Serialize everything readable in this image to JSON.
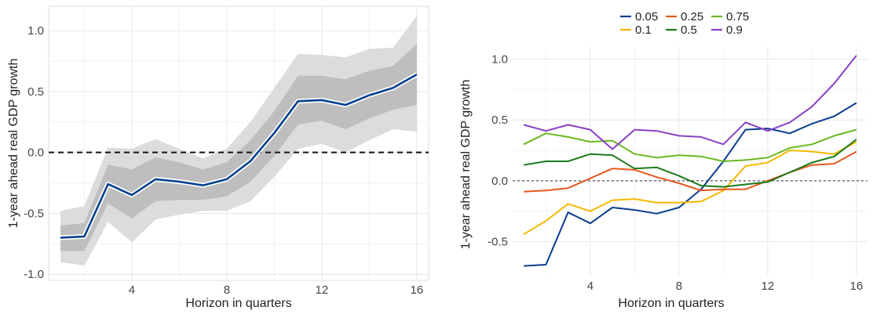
{
  "chart_data": [
    {
      "type": "area",
      "title": "",
      "xlabel": "Horizon in quarters",
      "ylabel": "1-year ahead real GDP growth",
      "xlim": [
        0.5,
        16.5
      ],
      "ylim": [
        -1.05,
        1.2
      ],
      "x_ticks": [
        4,
        8,
        12,
        16
      ],
      "y_ticks": [
        -1.0,
        -0.5,
        0.0,
        0.5,
        1.0
      ],
      "y_tick_labels": [
        "-1.0",
        "-0.5",
        "0.0",
        "0.5",
        "1.0"
      ],
      "grid": true,
      "reference_line": {
        "y": 0,
        "style": "dashed"
      },
      "x": [
        1,
        2,
        3,
        4,
        5,
        6,
        7,
        8,
        9,
        10,
        11,
        12,
        13,
        14,
        15,
        16
      ],
      "median": [
        -0.7,
        -0.69,
        -0.26,
        -0.35,
        -0.22,
        -0.24,
        -0.27,
        -0.22,
        -0.07,
        0.16,
        0.42,
        0.43,
        0.39,
        0.47,
        0.53,
        0.64
      ],
      "inner_band_upper": [
        -0.6,
        -0.58,
        -0.1,
        -0.14,
        -0.04,
        -0.08,
        -0.14,
        -0.08,
        0.1,
        0.34,
        0.63,
        0.63,
        0.6,
        0.67,
        0.71,
        0.89
      ],
      "inner_band_lower": [
        -0.81,
        -0.81,
        -0.42,
        -0.54,
        -0.4,
        -0.39,
        -0.39,
        -0.36,
        -0.24,
        -0.03,
        0.23,
        0.26,
        0.19,
        0.28,
        0.35,
        0.39
      ],
      "outer_band_upper": [
        -0.48,
        -0.44,
        0.04,
        0.03,
        0.11,
        0.03,
        -0.05,
        0.03,
        0.25,
        0.53,
        0.81,
        0.8,
        0.78,
        0.85,
        0.86,
        1.12
      ],
      "outer_band_lower": [
        -0.9,
        -0.93,
        -0.57,
        -0.74,
        -0.55,
        -0.51,
        -0.48,
        -0.48,
        -0.4,
        -0.2,
        0.03,
        0.07,
        0.0,
        0.1,
        0.19,
        0.17
      ],
      "colors": {
        "median": "#003f8f",
        "inner_band": "#bebebe",
        "outer_band": "#dcdcdc"
      }
    },
    {
      "type": "line",
      "title": "",
      "xlabel": "Horizon in quarters",
      "ylabel": "1-year ahead real GDP growth",
      "xlim": [
        0.5,
        16.5
      ],
      "ylim": [
        -0.78,
        1.1
      ],
      "x_ticks": [
        4,
        8,
        12,
        16
      ],
      "y_ticks": [
        -0.5,
        0.0,
        0.5,
        1.0
      ],
      "y_tick_labels": [
        "-0.5",
        "0.0",
        "0.5",
        "1.0"
      ],
      "grid": true,
      "reference_line": {
        "y": 0,
        "style": "dashed"
      },
      "legend_position": "top",
      "x": [
        1,
        2,
        3,
        4,
        5,
        6,
        7,
        8,
        9,
        10,
        11,
        12,
        13,
        14,
        15,
        16
      ],
      "series": [
        {
          "name": "0.05",
          "color": "#0b3d91",
          "values": [
            -0.7,
            -0.69,
            -0.26,
            -0.35,
            -0.22,
            -0.24,
            -0.27,
            -0.22,
            -0.07,
            0.16,
            0.42,
            0.43,
            0.39,
            0.47,
            0.53,
            0.64
          ]
        },
        {
          "name": "0.1",
          "color": "#f5b800",
          "values": [
            -0.44,
            -0.33,
            -0.19,
            -0.25,
            -0.16,
            -0.15,
            -0.18,
            -0.18,
            -0.17,
            -0.08,
            0.12,
            0.15,
            0.25,
            0.24,
            0.22,
            0.32
          ]
        },
        {
          "name": "0.25",
          "color": "#e8571e",
          "values": [
            -0.09,
            -0.08,
            -0.06,
            0.02,
            0.1,
            0.09,
            0.03,
            -0.02,
            -0.08,
            -0.07,
            -0.07,
            0.0,
            0.07,
            0.13,
            0.14,
            0.24
          ]
        },
        {
          "name": "0.5",
          "color": "#1a7a1a",
          "values": [
            0.13,
            0.16,
            0.16,
            0.22,
            0.21,
            0.1,
            0.11,
            0.04,
            -0.04,
            -0.05,
            -0.03,
            -0.01,
            0.07,
            0.15,
            0.2,
            0.34
          ]
        },
        {
          "name": "0.75",
          "color": "#6ab820",
          "values": [
            0.3,
            0.39,
            0.36,
            0.32,
            0.33,
            0.22,
            0.19,
            0.21,
            0.2,
            0.16,
            0.17,
            0.19,
            0.27,
            0.3,
            0.37,
            0.42
          ]
        },
        {
          "name": "0.9",
          "color": "#8a3fc8",
          "values": [
            0.46,
            0.41,
            0.46,
            0.42,
            0.26,
            0.42,
            0.41,
            0.37,
            0.36,
            0.3,
            0.48,
            0.41,
            0.48,
            0.61,
            0.8,
            1.03
          ]
        }
      ]
    }
  ]
}
